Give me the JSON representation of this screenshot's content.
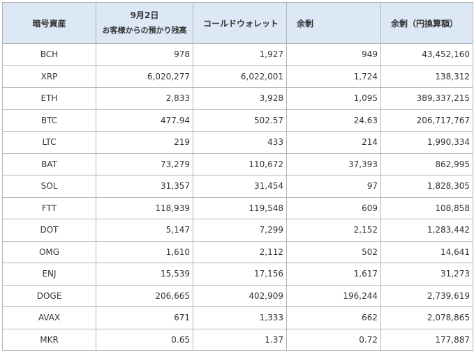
{
  "header": {
    "asset": "暗号資産",
    "date": "9月2日",
    "customer_deposits": "お客様からの預かり残高",
    "cold_wallet": "コールドウォレット",
    "surplus": "余剰",
    "surplus_jpy": "余剰（円換算額）"
  },
  "rows": [
    {
      "asset": "BCH",
      "deposits": "978",
      "cold": "1,927",
      "surplus": "949",
      "jpy": "43,452,160"
    },
    {
      "asset": "XRP",
      "deposits": "6,020,277",
      "cold": "6,022,001",
      "surplus": "1,724",
      "jpy": "138,312"
    },
    {
      "asset": "ETH",
      "deposits": "2,833",
      "cold": "3,928",
      "surplus": "1,095",
      "jpy": "389,337,215"
    },
    {
      "asset": "BTC",
      "deposits": "477.94",
      "cold": "502.57",
      "surplus": "24.63",
      "jpy": "206,717,767"
    },
    {
      "asset": "LTC",
      "deposits": "219",
      "cold": "433",
      "surplus": "214",
      "jpy": "1,990,334"
    },
    {
      "asset": "BAT",
      "deposits": "73,279",
      "cold": "110,672",
      "surplus": "37,393",
      "jpy": "862,995"
    },
    {
      "asset": "SOL",
      "deposits": "31,357",
      "cold": "31,454",
      "surplus": "97",
      "jpy": "1,828,305"
    },
    {
      "asset": "FTT",
      "deposits": "118,939",
      "cold": "119,548",
      "surplus": "609",
      "jpy": "108,858"
    },
    {
      "asset": "DOT",
      "deposits": "5,147",
      "cold": "7,299",
      "surplus": "2,152",
      "jpy": "1,283,442"
    },
    {
      "asset": "OMG",
      "deposits": "1,610",
      "cold": "2,112",
      "surplus": "502",
      "jpy": "14,641"
    },
    {
      "asset": "ENJ",
      "deposits": "15,539",
      "cold": "17,156",
      "surplus": "1,617",
      "jpy": "31,273"
    },
    {
      "asset": "DOGE",
      "deposits": "206,665",
      "cold": "402,909",
      "surplus": "196,244",
      "jpy": "2,739,619"
    },
    {
      "asset": "AVAX",
      "deposits": "671",
      "cold": "1,333",
      "surplus": "662",
      "jpy": "2,078,865"
    },
    {
      "asset": "MKR",
      "deposits": "0.65",
      "cold": "1.37",
      "surplus": "0.72",
      "jpy": "177,887"
    }
  ]
}
